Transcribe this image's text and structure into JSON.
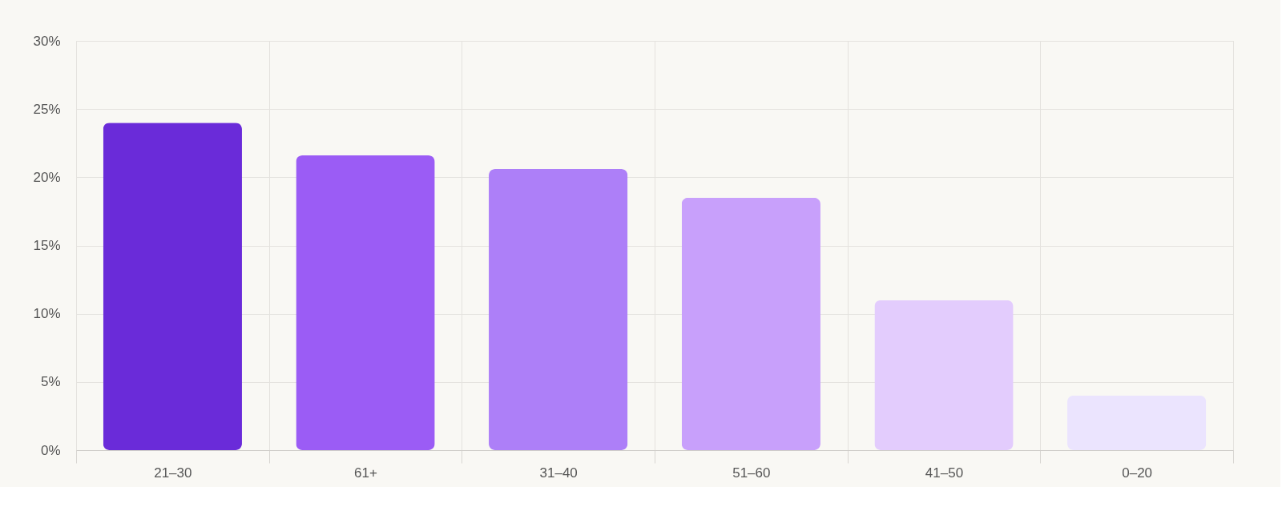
{
  "chart_data": {
    "type": "bar",
    "categories": [
      "21–30",
      "61+",
      "31–40",
      "51–60",
      "41–50",
      "0–20"
    ],
    "values": [
      24,
      21.6,
      20.6,
      18.5,
      11,
      4
    ],
    "colors": [
      "#6a2bd9",
      "#9b5cf5",
      "#ad7ff8",
      "#c8a0fb",
      "#e3ccfd",
      "#ebe4fe"
    ],
    "ylim": [
      0,
      30
    ],
    "yticks": [
      {
        "value": 0,
        "label": "0%"
      },
      {
        "value": 5,
        "label": "5%"
      },
      {
        "value": 10,
        "label": "10%"
      },
      {
        "value": 15,
        "label": "15%"
      },
      {
        "value": 20,
        "label": "20%"
      },
      {
        "value": 25,
        "label": "25%"
      },
      {
        "value": 30,
        "label": "30%"
      }
    ],
    "grid": true
  }
}
